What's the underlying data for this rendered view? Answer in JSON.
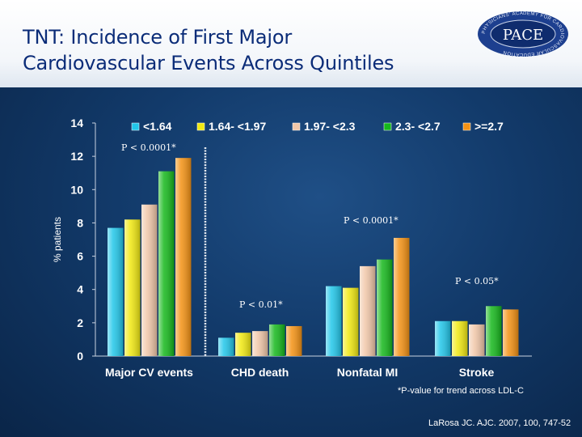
{
  "slide": {
    "title_line1": "TNT: Incidence of First Major",
    "title_line2": "Cardiovascular Events Across Quintiles",
    "logo_text": "PACE",
    "logo_ring_text": "PHYSICIANS' ACADEMY FOR CARDIOVASCULAR EDUCATION",
    "footnote": "*P-value for trend across LDL-C",
    "citation": "LaRosa JC. AJC. 2007, 100, 747-52"
  },
  "chart_data": {
    "type": "bar",
    "ylabel": "% patients",
    "ylim": [
      0,
      14
    ],
    "yticks": [
      0,
      2,
      4,
      6,
      8,
      10,
      12,
      14
    ],
    "grid": false,
    "legend_position": "top",
    "categories": [
      "Major CV events",
      "CHD death",
      "Nonfatal MI",
      "Stroke"
    ],
    "series": [
      {
        "name": "<1.64",
        "color": "#22c7ea",
        "values": [
          7.7,
          1.1,
          4.2,
          2.1
        ]
      },
      {
        "name": "1.64- <1.97",
        "color": "#f2ea12",
        "values": [
          8.2,
          1.4,
          4.1,
          2.1
        ]
      },
      {
        "name": "1.97- <2.3",
        "color": "#f1c7a9",
        "values": [
          9.1,
          1.5,
          5.4,
          1.9
        ]
      },
      {
        "name": "2.3- <2.7",
        "color": "#16b81c",
        "values": [
          11.1,
          1.9,
          5.8,
          3.0
        ]
      },
      {
        "name": ">=2.7",
        "color": "#f49214",
        "values": [
          11.9,
          1.8,
          7.1,
          2.8
        ]
      }
    ],
    "annotations": [
      "P < 0.0001*",
      "P < 0.01*",
      "P < 0.0001*",
      "P < 0.05*"
    ]
  }
}
